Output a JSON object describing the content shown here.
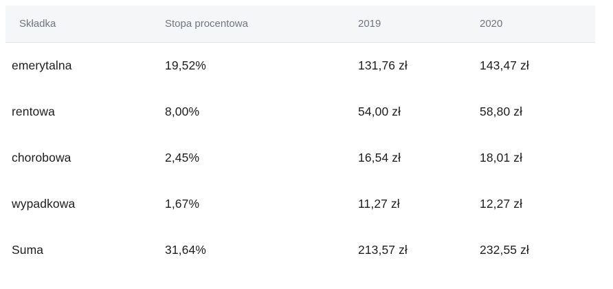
{
  "table": {
    "columns": [
      {
        "label": "Składka"
      },
      {
        "label": "Stopa procentowa"
      },
      {
        "label": "2019"
      },
      {
        "label": "2020"
      }
    ],
    "rows": [
      {
        "skladka": "emerytalna",
        "stopa": "19,52%",
        "y2019": "131,76 zł",
        "y2020": "143,47 zł"
      },
      {
        "skladka": "rentowa",
        "stopa": "8,00%",
        "y2019": "54,00 zł",
        "y2020": "58,80 zł"
      },
      {
        "skladka": "chorobowa",
        "stopa": "2,45%",
        "y2019": "16,54 zł",
        "y2020": "18,01 zł"
      },
      {
        "skladka": "wypadkowa",
        "stopa": "1,67%",
        "y2019": "11,27 zł",
        "y2020": "12,27 zł"
      },
      {
        "skladka": "Suma",
        "stopa": "31,64%",
        "y2019": "213,57 zł",
        "y2020": "232,55 zł"
      }
    ],
    "colors": {
      "header_bg": "#f4f6f8",
      "header_text": "#6f7680",
      "body_text": "#1e1e20",
      "header_border": "#e0e3e7"
    }
  }
}
